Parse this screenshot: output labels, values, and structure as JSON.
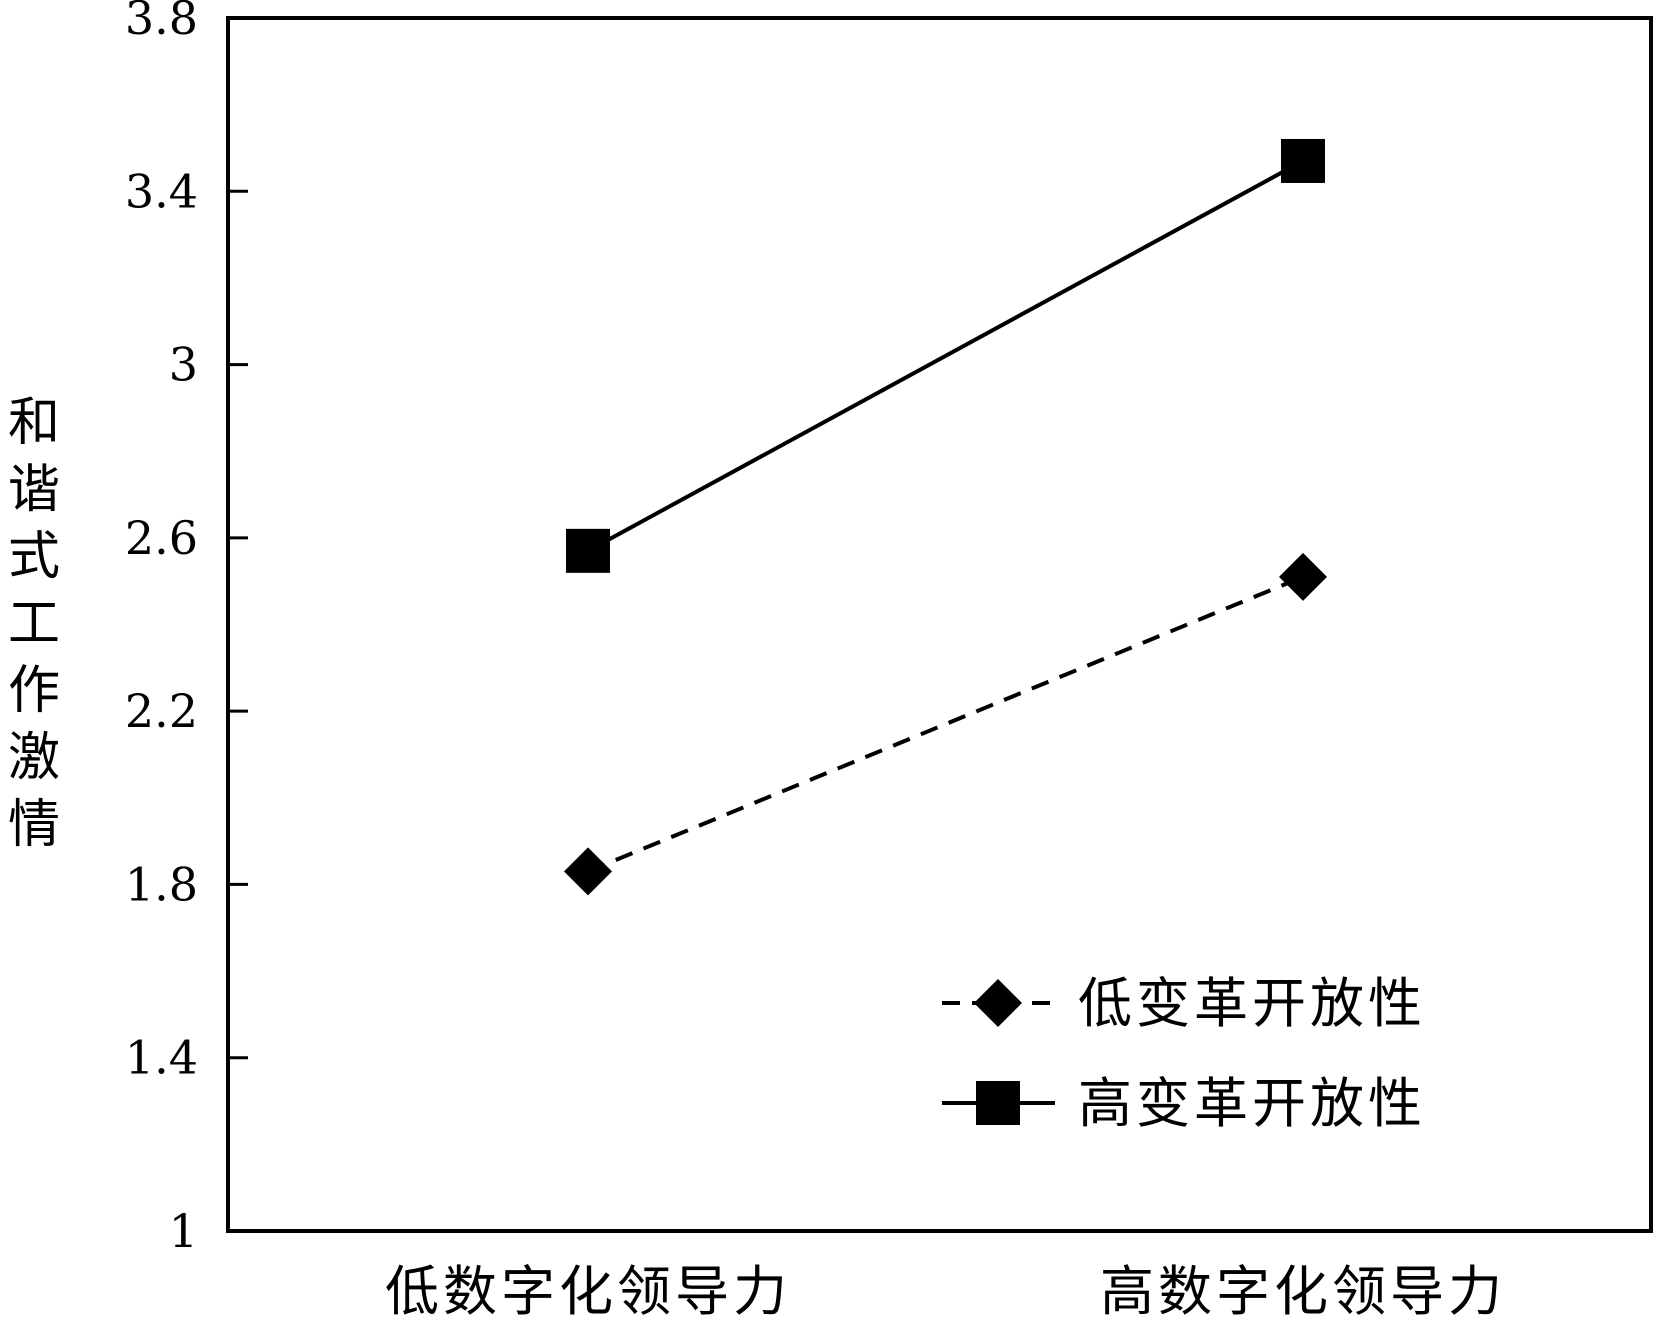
{
  "chart_data": {
    "type": "line",
    "title": "",
    "xlabel": "",
    "ylabel": "和谐式工作激情",
    "categories": [
      "低数字化领导力",
      "高数字化领导力"
    ],
    "ylim": [
      1,
      3.8
    ],
    "yticks": [
      "1",
      "1.4",
      "1.8",
      "2.2",
      "2.6",
      "3",
      "3.4",
      "3.8"
    ],
    "grid": false,
    "legend_position": "bottom-right",
    "series": [
      {
        "name": "低变革开放性",
        "values": [
          1.83,
          2.51
        ],
        "line_style": "dashed",
        "marker": "diamond",
        "color": "#000000"
      },
      {
        "name": "高变革开放性",
        "values": [
          2.57,
          3.47
        ],
        "line_style": "solid",
        "marker": "square",
        "color": "#000000"
      }
    ]
  }
}
